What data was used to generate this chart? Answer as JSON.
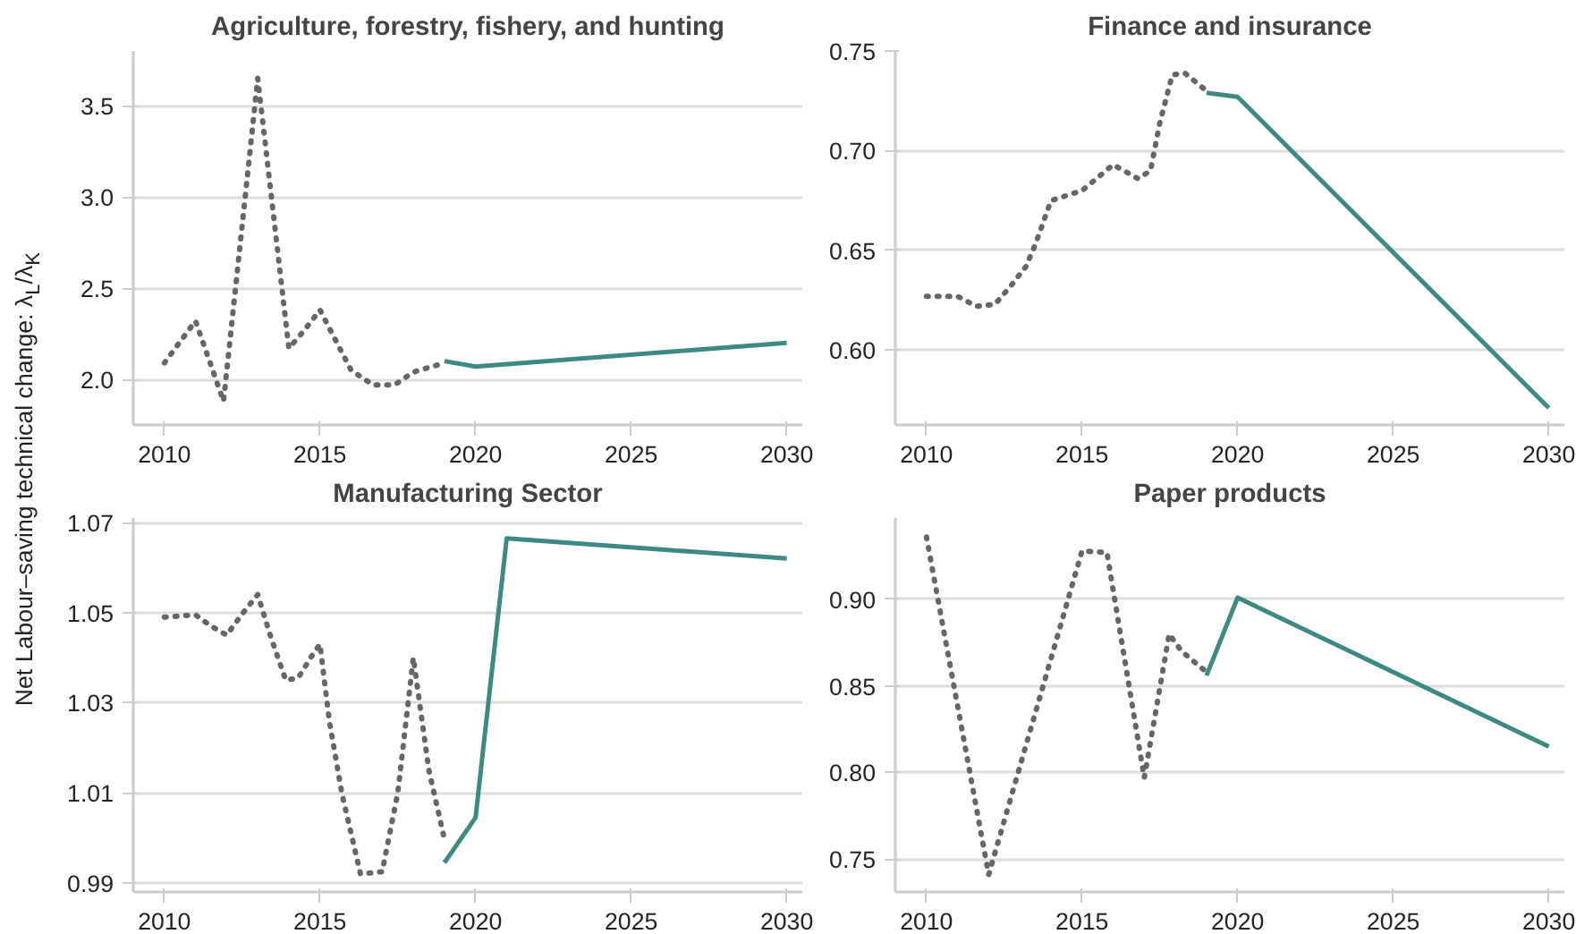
{
  "chart_data": [
    {
      "type": "line",
      "title": "Agriculture, forestry, fishery, and hunting",
      "ylabel": "Net Labour–saving technical change: λ$_{L}$/λ$_{K}$",
      "xlim": [
        2009,
        2030.5
      ],
      "xticks": [
        2010,
        2015,
        2020,
        2025,
        2030
      ],
      "ylim": [
        1.75,
        3.8
      ],
      "yticks": [
        {
          "value": 2,
          "label": "2.0"
        },
        2.5,
        {
          "value": 3,
          "label": "3.0"
        },
        3.5
      ],
      "grid": "y",
      "marker": "none",
      "series": [
        {
          "color": "#666666",
          "line_style": "dotted",
          "x": [
            2010,
            2011,
            2011.9,
            2013,
            2014,
            2014.5,
            2015,
            2016,
            2016.7,
            2017.4,
            2018,
            2019
          ],
          "values": [
            2.09,
            2.32,
            1.88,
            3.65,
            2.17,
            2.27,
            2.38,
            2.05,
            1.97,
            1.97,
            2.04,
            2.09
          ]
        },
        {
          "color": "#3d8a85",
          "line_style": "solid",
          "x": [
            2019,
            2020,
            2030
          ],
          "values": [
            2.1,
            2.07,
            2.2
          ]
        }
      ]
    },
    {
      "type": "line",
      "title": "Finance and insurance",
      "xlim": [
        2009,
        2030.5
      ],
      "xticks": [
        2010,
        2015,
        2020,
        2025,
        2030
      ],
      "ylim": [
        0.5625,
        0.75
      ],
      "yticks": [
        {
          "value": 0.6,
          "label": "0.60"
        },
        0.65,
        {
          "value": 0.7,
          "label": "0.70"
        },
        0.75
      ],
      "grid": "y",
      "marker": "none",
      "series": [
        {
          "color": "#666666",
          "line_style": "dotted",
          "x": [
            2010,
            2011,
            2011.6,
            2012.2,
            2012.7,
            2013.2,
            2013.5,
            2014,
            2015,
            2016,
            2016.8,
            2017.2,
            2017.5,
            2017.9,
            2018.3,
            2019
          ],
          "values": [
            0.627,
            0.627,
            0.622,
            0.623,
            0.632,
            0.642,
            0.653,
            0.675,
            0.68,
            0.693,
            0.686,
            0.69,
            0.714,
            0.738,
            0.739,
            0.73
          ]
        },
        {
          "color": "#3d8a85",
          "line_style": "solid",
          "x": [
            2019,
            2020,
            2030
          ],
          "values": [
            0.729,
            0.727,
            0.571
          ]
        }
      ]
    },
    {
      "type": "line",
      "title": "Manufacturing Sector",
      "xlim": [
        2009,
        2030.5
      ],
      "xticks": [
        2010,
        2015,
        2020,
        2025,
        2030
      ],
      "ylim": [
        0.988,
        1.071
      ],
      "yticks": [
        0.99,
        1.01,
        1.03,
        1.05,
        1.07
      ],
      "grid": "y",
      "marker": "none",
      "series": [
        {
          "color": "#666666",
          "line_style": "dotted",
          "x": [
            2010,
            2011,
            2011.5,
            2012,
            2012.5,
            2013,
            2013.4,
            2013.9,
            2014.3,
            2014.7,
            2015,
            2015.3,
            2015.7,
            2016.3,
            2017,
            2017.5,
            2018,
            2018.5,
            2019
          ],
          "values": [
            1.049,
            1.0495,
            1.047,
            1.045,
            1.0497,
            1.054,
            1.045,
            1.035,
            1.0355,
            1.04,
            1.043,
            1.026,
            1.01,
            0.992,
            0.9925,
            1.01,
            1.04,
            1.015,
            0.9997
          ]
        },
        {
          "color": "#3d8a85",
          "line_style": "solid",
          "x": [
            2019,
            2020,
            2021,
            2030
          ],
          "values": [
            0.9945,
            1.0045,
            1.0665,
            1.062
          ]
        }
      ]
    },
    {
      "type": "line",
      "title": "Paper products",
      "xlim": [
        2009,
        2030.5
      ],
      "xticks": [
        2010,
        2015,
        2020,
        2025,
        2030
      ],
      "ylim": [
        0.731,
        0.947
      ],
      "yticks": [
        0.75,
        {
          "value": 0.8,
          "label": "0.80"
        },
        0.85,
        {
          "value": 0.9,
          "label": "0.90"
        }
      ],
      "grid": "y",
      "marker": "none",
      "series": [
        {
          "color": "#666666",
          "line_style": "dotted",
          "x": [
            2010,
            2012,
            2015,
            2015.8,
            2017,
            2017.8,
            2018.2,
            2019
          ],
          "values": [
            0.936,
            0.741,
            0.928,
            0.927,
            0.797,
            0.88,
            0.87,
            0.858
          ]
        },
        {
          "color": "#3d8a85",
          "line_style": "solid",
          "x": [
            2019,
            2020,
            2030
          ],
          "values": [
            0.856,
            0.901,
            0.815
          ]
        }
      ]
    }
  ]
}
